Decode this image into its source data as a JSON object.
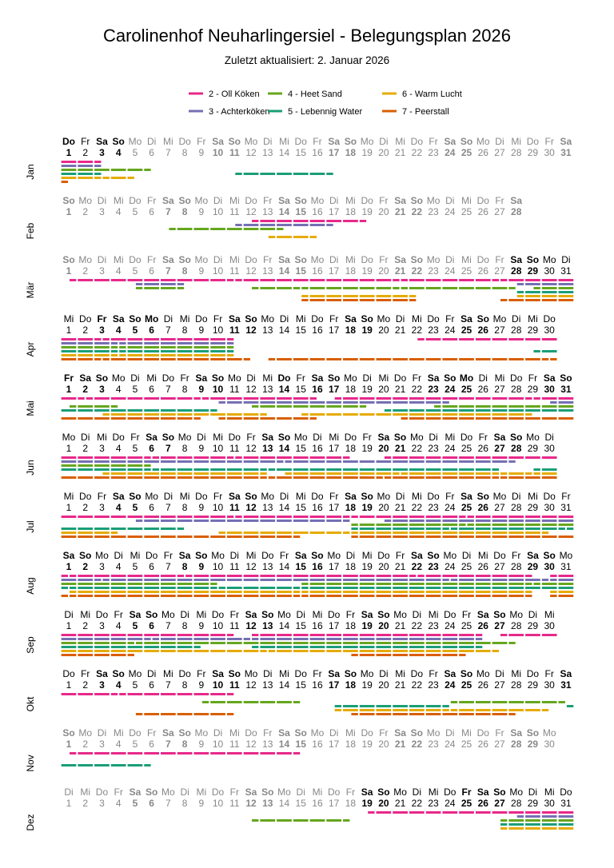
{
  "chart_data": {
    "type": "timeline",
    "title": "Carolinenhof Neuharlingersiel - Belegungsplan 2026",
    "subtitle": "Zuletzt aktualisiert:  2. Januar 2026",
    "year": 2026,
    "weekday_names": [
      "So",
      "Mo",
      "Di",
      "Mi",
      "Do",
      "Fr",
      "Sa"
    ],
    "legend": [
      {
        "key": "h2",
        "label": "2 - Oll Köken",
        "color": "#E7298A"
      },
      {
        "key": "h3",
        "label": "3 - Achterköken",
        "color": "#7570B3"
      },
      {
        "key": "h4",
        "label": "4 - Heet Sand",
        "color": "#66A61E"
      },
      {
        "key": "h5",
        "label": "5 - Lebennig Water",
        "color": "#1B9E77"
      },
      {
        "key": "h6",
        "label": "6 - Warm Lucht",
        "color": "#E6AB02"
      },
      {
        "key": "h7",
        "label": "7 - Peerstall",
        "color": "#D95F02"
      }
    ],
    "months": [
      {
        "label": "Jan",
        "days": 31,
        "active_days": [
          1,
          4
        ],
        "holidays": [
          1
        ],
        "bookings": {
          "h2": [
            [
              0.5,
              3
            ]
          ],
          "h3": [
            [
              0.5,
              3
            ]
          ],
          "h4": [
            [
              0.5,
              6
            ]
          ],
          "h5": [
            [
              0.5,
              3
            ],
            [
              11,
              17
            ]
          ],
          "h6": [
            [
              0.5,
              3
            ],
            [
              3,
              5
            ]
          ],
          "h7": [
            [
              0.5,
              1
            ]
          ]
        }
      },
      {
        "label": "Feb",
        "days": 28,
        "active_days": null,
        "holidays": [],
        "bookings": {
          "h2": [
            [
              12,
              19
            ]
          ],
          "h3": [
            [
              11,
              17
            ]
          ],
          "h4": [
            [
              7,
              14
            ]
          ],
          "h5": [],
          "h6": [
            [
              13,
              16
            ]
          ],
          "h7": []
        }
      },
      {
        "label": "Mär",
        "days": 31,
        "active_days": [
          28,
          31
        ],
        "holidays": [],
        "bookings": {
          "h2": [
            [
              1,
              11
            ],
            [
              11,
              21
            ],
            [
              21,
              27
            ],
            [
              27,
              31.5
            ]
          ],
          "h3": [
            [
              5,
              8
            ],
            [
              28,
              31.5
            ]
          ],
          "h4": [
            [
              5,
              8
            ],
            [
              12,
              15
            ],
            [
              15,
              21
            ],
            [
              21,
              28
            ],
            [
              29,
              31.5
            ]
          ],
          "h5": [
            [
              28,
              31.5
            ]
          ],
          "h6": [
            [
              15,
              22
            ],
            [
              28,
              31.5
            ]
          ],
          "h7": [
            [
              15,
              22
            ],
            [
              27,
              31.5
            ]
          ]
        }
      },
      {
        "label": "Apr",
        "days": 30,
        "active_days": [
          1,
          30
        ],
        "holidays": [
          3,
          6
        ],
        "bookings": {
          "h2": [
            [
              0.5,
              3
            ],
            [
              3,
              11
            ],
            [
              22,
              30.5
            ]
          ],
          "h3": [
            [
              0.5,
              4
            ],
            [
              4,
              11
            ]
          ],
          "h4": [
            [
              0.5,
              4
            ],
            [
              4,
              11
            ]
          ],
          "h5": [
            [
              0.5,
              4
            ],
            [
              4,
              11
            ],
            [
              29,
              30.5
            ]
          ],
          "h6": [
            [
              0.5,
              4
            ],
            [
              4,
              11
            ]
          ],
          "h7": [
            [
              0.5,
              3
            ],
            [
              3,
              12
            ],
            [
              13,
              30
            ],
            [
              30,
              30.5
            ]
          ]
        }
      },
      {
        "label": "Mai",
        "days": 31,
        "active_days": [
          1,
          31
        ],
        "holidays": [
          1,
          14,
          25
        ],
        "bookings": {
          "h2": [
            [
              0.5,
              2
            ],
            [
              2,
              9
            ],
            [
              9,
              16
            ],
            [
              17,
              29
            ],
            [
              29,
              31.5
            ]
          ],
          "h3": [
            [
              10,
              24
            ],
            [
              30,
              31.5
            ]
          ],
          "h4": [
            [
              1,
              4
            ],
            [
              12,
              19
            ],
            [
              23,
              31.5
            ]
          ],
          "h5": [
            [
              0.5,
              10
            ],
            [
              20,
              31.5
            ]
          ],
          "h6": [
            [
              3,
              13
            ],
            [
              15,
              29
            ]
          ],
          "h7": [
            [
              0.5,
              9
            ],
            [
              10,
              16
            ],
            [
              21,
              31.5
            ]
          ]
        }
      },
      {
        "label": "Jun",
        "days": 30,
        "active_days": [
          1,
          30
        ],
        "holidays": [],
        "bookings": {
          "h2": [
            [
              0.5,
              6
            ],
            [
              6,
              11
            ],
            [
              11,
              18
            ],
            [
              20,
              30.5
            ]
          ],
          "h3": [
            [
              0.5,
              14
            ],
            [
              14,
              28
            ]
          ],
          "h4": [
            [
              0.5,
              6
            ]
          ],
          "h5": [
            [
              0.5,
              6
            ],
            [
              6,
              13
            ],
            [
              13,
              27
            ],
            [
              29,
              30.5
            ]
          ],
          "h6": [
            [
              3,
              13
            ],
            [
              14,
              21
            ],
            [
              21,
              27
            ],
            [
              27,
              29
            ],
            [
              29,
              30.5
            ]
          ],
          "h7": [
            [
              0.5,
              13
            ],
            [
              13,
              20
            ],
            [
              20,
              27
            ],
            [
              27,
              30.5
            ]
          ]
        }
      },
      {
        "label": "Jul",
        "days": 31,
        "active_days": [
          1,
          31
        ],
        "holidays": [],
        "bookings": {
          "h2": [
            [
              0.5,
              11
            ],
            [
              11,
              18
            ],
            [
              18,
              25
            ],
            [
              25,
              31.5
            ]
          ],
          "h3": [
            [
              5,
              18
            ],
            [
              20,
              31.5
            ]
          ],
          "h4": [
            [
              18,
              25
            ],
            [
              25,
              31.5
            ]
          ],
          "h5": [
            [
              0.5,
              8
            ],
            [
              18,
              24
            ],
            [
              24,
              31
            ],
            [
              31,
              31.5
            ]
          ],
          "h6": [
            [
              0.5,
              4
            ],
            [
              10,
              18
            ],
            [
              18,
              30
            ]
          ],
          "h7": [
            [
              0.5,
              15
            ],
            [
              18,
              31.5
            ]
          ]
        }
      },
      {
        "label": "Aug",
        "days": 31,
        "active_days": [
          1,
          31
        ],
        "holidays": [],
        "bookings": {
          "h2": [
            [
              0.5,
              1
            ],
            [
              1,
              8
            ],
            [
              8,
              22
            ],
            [
              22,
              29
            ],
            [
              30,
              31.5
            ]
          ],
          "h3": [
            [
              0.5,
              3
            ],
            [
              3,
              24
            ],
            [
              24,
              30
            ],
            [
              30,
              31.5
            ]
          ],
          "h4": [
            [
              0.5,
              10
            ],
            [
              15,
              29
            ],
            [
              29,
              31.5
            ]
          ],
          "h5": [
            [
              0.5,
              1
            ],
            [
              1,
              10
            ],
            [
              10,
              15
            ],
            [
              15,
              31.5
            ]
          ],
          "h6": [
            [
              1,
              15
            ],
            [
              15,
              29
            ],
            [
              30,
              31.5
            ]
          ],
          "h7": [
            [
              0.5,
              1
            ],
            [
              1,
              15
            ],
            [
              15,
              29
            ],
            [
              30,
              31.5
            ]
          ]
        }
      },
      {
        "label": "Sep",
        "days": 30,
        "active_days": [
          1,
          30
        ],
        "holidays": [],
        "bookings": {
          "h2": [
            [
              0.5,
              11
            ],
            [
              12,
              26
            ],
            [
              27,
              30.5
            ]
          ],
          "h3": [
            [
              0.5,
              6
            ],
            [
              6,
              12
            ],
            [
              12,
              26
            ]
          ],
          "h4": [
            [
              0.5,
              5
            ],
            [
              5,
              28
            ]
          ],
          "h5": [
            [
              0.5,
              9
            ],
            [
              12,
              26
            ]
          ],
          "h6": [
            [
              0.5,
              13
            ],
            [
              13,
              27
            ]
          ],
          "h7": [
            [
              0.5,
              5
            ],
            [
              18,
              25
            ]
          ]
        }
      },
      {
        "label": "Okt",
        "days": 31,
        "active_days": [
          1,
          31
        ],
        "holidays": [
          3
        ],
        "bookings": {
          "h2": [
            [
              0.5,
              4
            ],
            [
              4,
              11
            ]
          ],
          "h3": [],
          "h4": [
            [
              9,
              15
            ],
            [
              24,
              31
            ]
          ],
          "h5": [
            [
              17,
              24
            ],
            [
              31,
              31.5
            ]
          ],
          "h6": [
            [
              17,
              24
            ],
            [
              24,
              30
            ]
          ],
          "h7": [
            [
              5,
              11
            ],
            [
              18,
              28
            ]
          ]
        }
      },
      {
        "label": "Nov",
        "days": 30,
        "active_days": null,
        "holidays": [],
        "bookings": {
          "h2": [
            [
              1,
              15
            ]
          ],
          "h3": [],
          "h4": [],
          "h5": [
            [
              0.5,
              6
            ]
          ],
          "h6": [],
          "h7": []
        }
      },
      {
        "label": "Dez",
        "days": 31,
        "active_days": [
          19,
          31
        ],
        "holidays": [
          25,
          26
        ],
        "bookings": {
          "h2": [
            [
              19,
              31.5
            ]
          ],
          "h3": [
            [
              28,
              31.5
            ]
          ],
          "h4": [
            [
              12,
              18
            ],
            [
              27,
              31.5
            ]
          ],
          "h5": [
            [
              27,
              31.5
            ]
          ],
          "h6": [
            [
              27,
              31.5
            ]
          ],
          "h7": []
        }
      }
    ]
  }
}
